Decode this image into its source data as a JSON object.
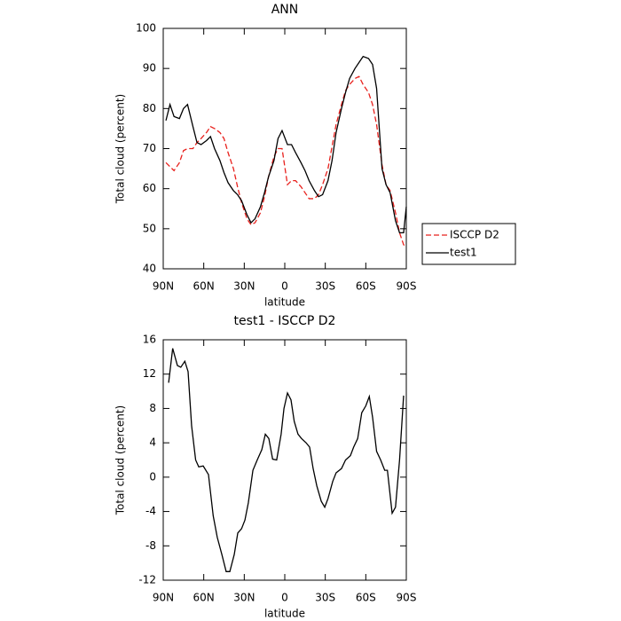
{
  "chart_data": [
    {
      "type": "line",
      "title": "ANN",
      "x_label": "latitude",
      "y_label": "Total cloud (percent)",
      "x": [
        88,
        85,
        82,
        78,
        75,
        72,
        68,
        65,
        62,
        58,
        55,
        52,
        48,
        45,
        42,
        38,
        35,
        32,
        28,
        25,
        22,
        18,
        15,
        12,
        8,
        5,
        2,
        -2,
        -5,
        -8,
        -12,
        -15,
        -18,
        -22,
        -25,
        -28,
        -32,
        -35,
        -38,
        -42,
        -45,
        -48,
        -52,
        -55,
        -58,
        -62,
        -65,
        -68,
        -72,
        -75,
        -78,
        -82,
        -85,
        -88,
        -90
      ],
      "series": [
        {
          "name": "ISCCP D2",
          "color": "#e8201c",
          "line_style": "dashed",
          "values": [
            66.5,
            65.5,
            64.5,
            66.5,
            69.5,
            70,
            70,
            71.5,
            72.5,
            74,
            75.5,
            75,
            74,
            72.5,
            69,
            65,
            60.5,
            56.5,
            52.5,
            51,
            51.5,
            54,
            58,
            63,
            68,
            70,
            70,
            61,
            62,
            62,
            60.5,
            59,
            57.5,
            57.5,
            58.5,
            61,
            65,
            70.5,
            76,
            81,
            84.5,
            86,
            87.5,
            88,
            86,
            84,
            81,
            76,
            66,
            61,
            59.5,
            54,
            49,
            46,
            45.5
          ]
        },
        {
          "name": "test1",
          "color": "#000000",
          "line_style": "solid",
          "values": [
            77,
            81,
            78,
            77.5,
            80,
            81,
            75.5,
            71.5,
            71,
            72,
            73,
            70,
            67,
            64,
            61.5,
            59.5,
            58.5,
            57,
            53.5,
            51.5,
            52.5,
            55.5,
            59,
            63,
            67,
            72.5,
            74.5,
            71,
            71,
            69,
            66.5,
            64.5,
            62,
            59.5,
            58,
            58.5,
            62,
            67,
            74,
            80,
            84,
            87.5,
            90,
            91.5,
            93,
            92.5,
            91,
            85,
            65,
            61,
            59,
            52,
            49,
            49,
            55.5
          ]
        }
      ],
      "xlim": [
        90,
        -90
      ],
      "xticks": [
        {
          "value": 90,
          "label": "90N"
        },
        {
          "value": 60,
          "label": "60N"
        },
        {
          "value": 30,
          "label": "30N"
        },
        0,
        {
          "value": -30,
          "label": "30S"
        },
        {
          "value": -60,
          "label": "60S"
        },
        {
          "value": -90,
          "label": "90S"
        }
      ],
      "ylim": [
        40,
        100
      ],
      "yticks": [
        40,
        50,
        60,
        70,
        80,
        90,
        100
      ],
      "legend": "right"
    },
    {
      "type": "line",
      "title": "test1 - ISCCP D2",
      "x_label": "latitude",
      "y_label": "Total cloud (percent)",
      "x": [
        86,
        83,
        79.5,
        77,
        74,
        71.6,
        69,
        66,
        63.7,
        60.4,
        56.5,
        53,
        50,
        46.6,
        43.4,
        40.7,
        37.4,
        34.8,
        32,
        29.5,
        27,
        23.6,
        20.4,
        17,
        14.4,
        11.8,
        9,
        6,
        2.7,
        0.6,
        -2,
        -4.6,
        -7,
        -9.8,
        -12.4,
        -15.8,
        -18.4,
        -21,
        -23.7,
        -27,
        -29.6,
        -32,
        -35.5,
        -38,
        -42,
        -45,
        -48.6,
        -51,
        -54,
        -57,
        -60,
        -62.6,
        -65,
        -68,
        -71,
        -74,
        -76,
        -79.5,
        -82,
        -85,
        -88
      ],
      "series": [
        {
          "color": "#000000",
          "line_style": "solid",
          "values": [
            11,
            15,
            13,
            12.8,
            13.5,
            12.3,
            6,
            2,
            1.2,
            1.3,
            0.3,
            -4.5,
            -7,
            -9,
            -11,
            -11,
            -9,
            -6.5,
            -6,
            -5,
            -3,
            0.8,
            2,
            3.2,
            5,
            4.5,
            2.1,
            2,
            5,
            8,
            9.8,
            9,
            6.5,
            5,
            4.5,
            4,
            3.5,
            1,
            -1,
            -2.8,
            -3.5,
            -2.5,
            -0.5,
            0.5,
            1,
            2,
            2.5,
            3.5,
            4.5,
            7.5,
            8.3,
            9.4,
            7,
            3,
            2,
            0.8,
            0.8,
            -4.2,
            -3.5,
            2,
            9.5
          ]
        }
      ],
      "xlim": [
        90,
        -90
      ],
      "xticks": [
        {
          "value": 90,
          "label": "90N"
        },
        {
          "value": 60,
          "label": "60N"
        },
        {
          "value": 30,
          "label": "30N"
        },
        0,
        {
          "value": -30,
          "label": "30S"
        },
        {
          "value": -60,
          "label": "60S"
        },
        {
          "value": -90,
          "label": "90S"
        }
      ],
      "ylim": [
        -12,
        16
      ],
      "yticks": [
        -12,
        -8,
        -4,
        0,
        4,
        8,
        12,
        16
      ]
    }
  ]
}
